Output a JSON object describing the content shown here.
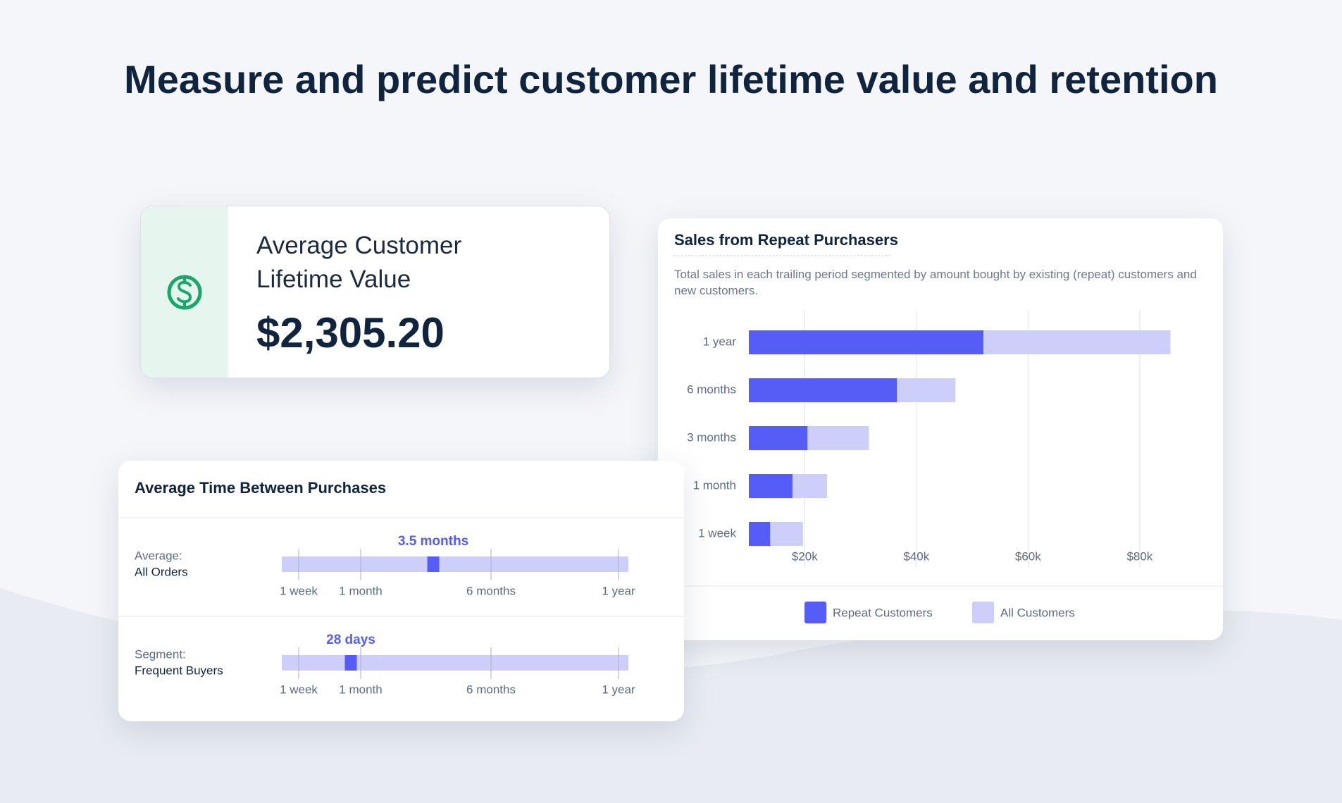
{
  "headline": "Measure and predict customer lifetime value and retention",
  "ltv_card": {
    "title_lines": [
      "Average Customer",
      "Lifetime Value"
    ],
    "value": "$2,305.20"
  },
  "chart_data": {
    "type": "bar",
    "orientation": "horizontal",
    "title": "Sales from Repeat Purchasers",
    "subtitle": "Total sales in each trailing period segmented by amount bought by existing (repeat) customers and new customers.",
    "categories": [
      "1 year",
      "6 months",
      "3 months",
      "1 month",
      "1 week"
    ],
    "series": [
      {
        "name": "Repeat Customers",
        "color": "#555df6",
        "values": [
          52000,
          36500,
          20500,
          17800,
          13800
        ]
      },
      {
        "name": "All Customers",
        "color": "#cdcefa",
        "values": [
          85500,
          47000,
          31500,
          24000,
          19700
        ]
      }
    ],
    "xlim": [
      10000,
      92000
    ],
    "xticks": [
      {
        "value": 20000,
        "label": "$20k"
      },
      {
        "value": 40000,
        "label": "$40k"
      },
      {
        "value": 60000,
        "label": "$60k"
      },
      {
        "value": 80000,
        "label": "$80k"
      }
    ],
    "grid": true
  },
  "time_card": {
    "title": "Average Time Between Purchases",
    "scale_labels": [
      "1 week",
      "1 month",
      "6 months",
      "1 year"
    ],
    "rows": [
      {
        "label": "Average:",
        "sublabel": "All Orders",
        "marker_label": "3.5 months"
      },
      {
        "label": "Segment:",
        "sublabel": "Frequent Buyers",
        "marker_label": "28 days"
      }
    ]
  }
}
